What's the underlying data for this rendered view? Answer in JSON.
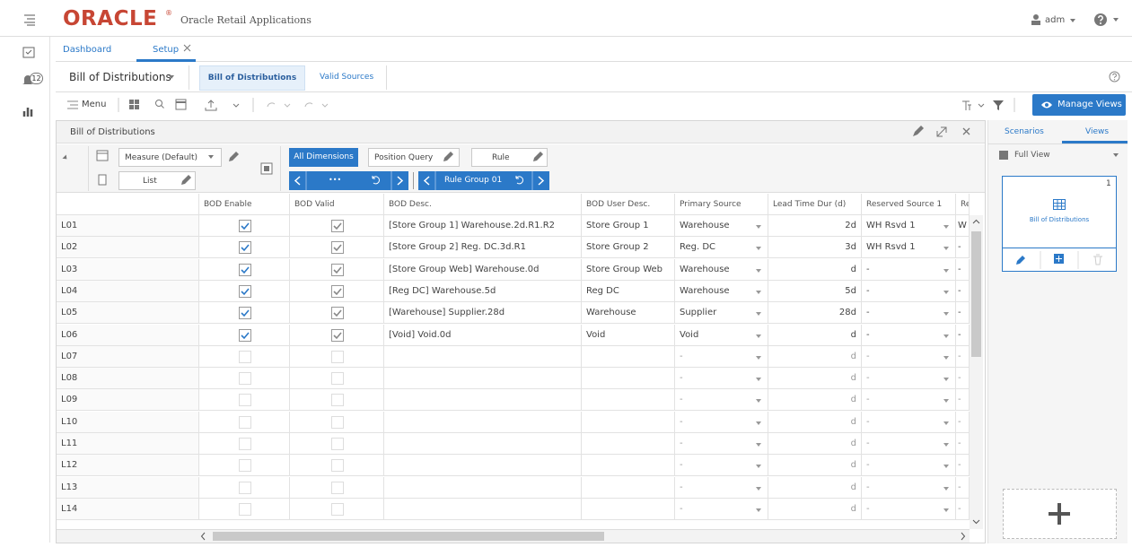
{
  "header": {
    "logo": "ORACLE",
    "trademark": "®",
    "app_name": "Oracle Retail Applications",
    "user": "adm"
  },
  "sidebar": {
    "notifications": 12
  },
  "tabs": [
    "Dashboard",
    "Setup"
  ],
  "workspace": {
    "title": "Bill of Distributions",
    "subtabs": [
      "Bill of Distributions",
      "Valid Sources"
    ]
  },
  "toolbar": {
    "menu": "Menu",
    "manage_views": "Manage Views"
  },
  "view": {
    "title": "Bill of Distributions",
    "measure": "Measure (Default)",
    "layout": "List",
    "all_dimensions": "All Dimensions",
    "position_query": "Position Query",
    "rule": "Rule",
    "dimension_nav": "•••",
    "rule_group": "Rule Group 01"
  },
  "table": {
    "columns": [
      "BOD Enable",
      "BOD Valid",
      "BOD Desc.",
      "BOD User Desc.",
      "Primary Source",
      "Lead Time Dur (d)",
      "Reserved Source 1",
      "Re"
    ],
    "rows": [
      [
        "L01",
        true,
        true,
        "[Store Group 1] Warehouse.2d.R1.R2",
        "Store Group 1",
        "Warehouse",
        "2d",
        "WH Rsvd 1",
        "W"
      ],
      [
        "L02",
        true,
        true,
        "[Store Group 2] Reg. DC.3d.R1",
        "Store Group 2",
        "Reg. DC",
        "3d",
        "WH Rsvd 1",
        "-"
      ],
      [
        "L03",
        true,
        true,
        "[Store Group Web] Warehouse.0d",
        "Store Group Web",
        "Warehouse",
        "d",
        "-",
        "-"
      ],
      [
        "L04",
        true,
        true,
        "[Reg DC] Warehouse.5d",
        "Reg DC",
        "Warehouse",
        "5d",
        "-",
        "-"
      ],
      [
        "L05",
        true,
        true,
        "[Warehouse] Supplier.28d",
        "Warehouse",
        "Supplier",
        "28d",
        "-",
        "-"
      ],
      [
        "L06",
        true,
        true,
        "[Void] Void.0d",
        "Void",
        "Void",
        "d",
        "-",
        "-"
      ],
      [
        "L07",
        false,
        false,
        null,
        null,
        "-",
        "d",
        "-",
        "-"
      ],
      [
        "L08",
        false,
        false,
        null,
        null,
        "-",
        "d",
        "-",
        "-"
      ],
      [
        "L09",
        false,
        false,
        null,
        null,
        "-",
        "d",
        "-",
        "-"
      ],
      [
        "L10",
        false,
        false,
        null,
        null,
        "-",
        "d",
        "-",
        "-"
      ],
      [
        "L11",
        false,
        false,
        null,
        null,
        "-",
        "d",
        "-",
        "-"
      ],
      [
        "L12",
        false,
        false,
        null,
        null,
        "-",
        "d",
        "-",
        "-"
      ],
      [
        "L13",
        false,
        false,
        null,
        null,
        "-",
        "d",
        "-",
        "-"
      ],
      [
        "L14",
        false,
        false,
        null,
        null,
        "-",
        "d",
        "-",
        "-"
      ]
    ]
  },
  "side_panel": {
    "tabs": [
      "Scenarios",
      "Views"
    ],
    "view_select": "Full View",
    "card_count": 1,
    "card_label": "Bill of Distributions"
  }
}
